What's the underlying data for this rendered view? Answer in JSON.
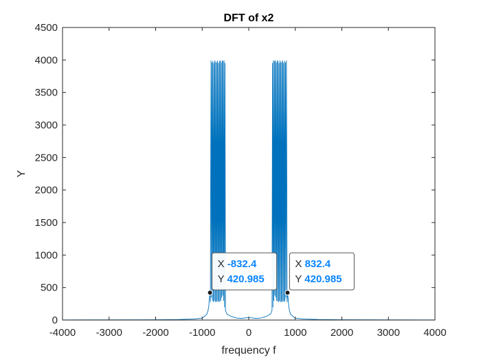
{
  "chart_data": {
    "type": "line",
    "title": "DFT of x2",
    "xlabel": "frequency f",
    "ylabel": "Y",
    "xlim": [
      -4000,
      4000
    ],
    "ylim": [
      0,
      4500
    ],
    "xticks": [
      -4000,
      -3000,
      -2000,
      -1000,
      0,
      1000,
      2000,
      3000,
      4000
    ],
    "yticks": [
      0,
      500,
      1000,
      1500,
      2000,
      2500,
      3000,
      3500,
      4000,
      4500
    ],
    "xtick_labels": [
      "-4000",
      "-3000",
      "-2000",
      "-1000",
      "0",
      "1000",
      "2000",
      "3000",
      "4000"
    ],
    "ytick_labels": [
      "0",
      "500",
      "1000",
      "1500",
      "2000",
      "2500",
      "3000",
      "3500",
      "4000",
      "4500"
    ],
    "grid": false,
    "series": [
      {
        "color": "#0072bd",
        "x": [
          -4000,
          -3000,
          -2000,
          -1500,
          -1200,
          -1000,
          -950,
          -900,
          -880,
          -860,
          -850,
          -832.4,
          -825,
          -810,
          -800,
          -790,
          -780,
          -770,
          -760,
          -750,
          -740,
          -730,
          -720,
          -710,
          -700,
          -690,
          -680,
          -670,
          -660,
          -650,
          -640,
          -630,
          -620,
          -610,
          -600,
          -590,
          -580,
          -570,
          -560,
          -550,
          -540,
          -530,
          -520,
          -510,
          -500,
          -480,
          -460,
          -420,
          -350,
          -250,
          -150,
          -50,
          0,
          50,
          150,
          250,
          350,
          420,
          460,
          480,
          500,
          510,
          520,
          530,
          540,
          550,
          560,
          570,
          580,
          590,
          600,
          610,
          620,
          630,
          640,
          650,
          660,
          670,
          680,
          690,
          700,
          710,
          720,
          730,
          740,
          750,
          760,
          770,
          780,
          790,
          800,
          810,
          825,
          832.4,
          850,
          860,
          880,
          900,
          950,
          1000,
          1200,
          1500,
          2000,
          3000,
          4000
        ],
        "y": [
          2,
          3,
          5,
          8,
          15,
          30,
          55,
          90,
          130,
          200,
          300,
          420.985,
          280,
          3990,
          350,
          3960,
          300,
          3980,
          280,
          3950,
          300,
          3990,
          280,
          3970,
          290,
          3960,
          280,
          3990,
          300,
          3950,
          280,
          3980,
          290,
          3990,
          300,
          3960,
          350,
          3990,
          380,
          3980,
          300,
          3990,
          200,
          3950,
          150,
          110,
          90,
          70,
          50,
          30,
          25,
          35,
          40,
          35,
          25,
          30,
          50,
          70,
          90,
          110,
          150,
          3950,
          200,
          3990,
          300,
          3980,
          380,
          3990,
          350,
          3960,
          300,
          3990,
          290,
          3980,
          280,
          3950,
          300,
          3990,
          280,
          3960,
          290,
          3970,
          280,
          3990,
          300,
          3950,
          280,
          3980,
          300,
          3960,
          350,
          3990,
          280,
          420.985,
          300,
          200,
          130,
          90,
          55,
          30,
          15,
          8,
          5,
          3,
          2
        ]
      }
    ],
    "datatips": [
      {
        "x_key": "X",
        "x_value": "-832.4",
        "y_key": "Y",
        "y_value": "420.985",
        "x": -832.4,
        "y": 420.985
      },
      {
        "x_key": "X",
        "x_value": "832.4",
        "y_key": "Y",
        "y_value": "420.985",
        "x": 832.4,
        "y": 420.985
      }
    ]
  }
}
